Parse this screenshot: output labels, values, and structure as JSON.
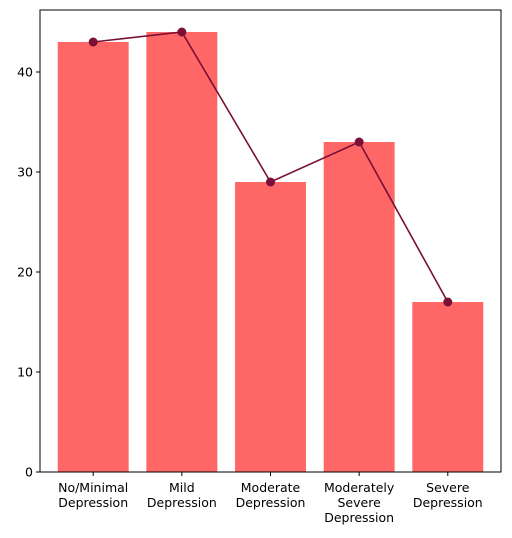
{
  "chart_data": {
    "type": "bar",
    "categories": [
      [
        "No/Minimal",
        "Depression"
      ],
      [
        "Mild",
        "Depression"
      ],
      [
        "Moderate",
        "Depression"
      ],
      [
        "Moderately",
        "Severe",
        "Depression"
      ],
      [
        "Severe",
        "Depression"
      ]
    ],
    "values": [
      43,
      44,
      29,
      33,
      17
    ],
    "line_overlay": {
      "values": [
        43,
        44,
        29,
        33,
        17
      ],
      "color": "#7a1035",
      "marker": "circle"
    },
    "bar_color": "#ff6666",
    "title": "",
    "xlabel": "",
    "ylabel": "",
    "ylim": [
      0,
      46.2
    ],
    "yticks": [
      0,
      10,
      20,
      30,
      40
    ],
    "grid": false,
    "legend": "none"
  }
}
